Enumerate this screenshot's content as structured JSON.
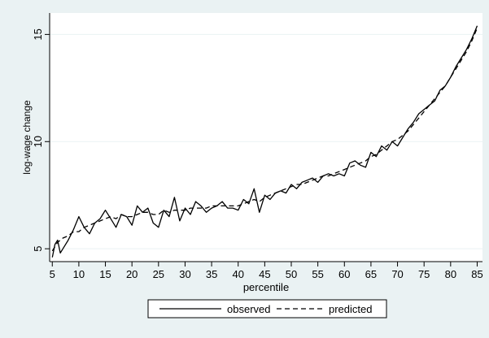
{
  "chart_data": {
    "type": "line",
    "title": "",
    "xlabel": "percentile",
    "ylabel": "log-wage change",
    "xlim": [
      4.5,
      86
    ],
    "ylim": [
      4.4,
      16
    ],
    "x_ticks": [
      5,
      10,
      15,
      20,
      25,
      30,
      35,
      40,
      45,
      50,
      55,
      60,
      65,
      70,
      75,
      80,
      85
    ],
    "y_ticks": [
      5,
      10,
      15
    ],
    "grid": "horizontal",
    "legend": "bottom, boxed",
    "series": [
      {
        "name": "observed",
        "style": "solid",
        "color": "#000000",
        "x": [
          5,
          5.5,
          6,
          6.5,
          7,
          8,
          9,
          10,
          11,
          12,
          13,
          14,
          15,
          16,
          17,
          18,
          19,
          20,
          21,
          22,
          23,
          24,
          25,
          26,
          27,
          28,
          29,
          30,
          31,
          32,
          33,
          34,
          35,
          36,
          37,
          38,
          39,
          40,
          41,
          42,
          43,
          44,
          45,
          46,
          47,
          48,
          49,
          50,
          51,
          52,
          53,
          54,
          55,
          56,
          57,
          58,
          59,
          60,
          61,
          62,
          63,
          64,
          65,
          66,
          67,
          68,
          69,
          70,
          71,
          72,
          73,
          74,
          75,
          76,
          77,
          78,
          79,
          80,
          81,
          82,
          83,
          84,
          85
        ],
        "y": [
          4.6,
          5.2,
          5.4,
          4.8,
          5.0,
          5.4,
          5.9,
          6.5,
          6.0,
          5.7,
          6.2,
          6.4,
          6.8,
          6.4,
          6.0,
          6.6,
          6.5,
          6.1,
          7.0,
          6.7,
          6.9,
          6.2,
          6.0,
          6.8,
          6.5,
          7.4,
          6.3,
          6.9,
          6.6,
          7.2,
          7.0,
          6.7,
          6.9,
          7.0,
          7.2,
          6.9,
          6.9,
          6.8,
          7.3,
          7.1,
          7.8,
          6.7,
          7.5,
          7.3,
          7.6,
          7.7,
          7.6,
          8.0,
          7.8,
          8.1,
          8.2,
          8.3,
          8.1,
          8.4,
          8.5,
          8.4,
          8.5,
          8.4,
          9.0,
          9.1,
          8.9,
          8.8,
          9.5,
          9.3,
          9.8,
          9.6,
          10.0,
          9.8,
          10.2,
          10.6,
          10.9,
          11.3,
          11.5,
          11.7,
          11.9,
          12.4,
          12.6,
          13.0,
          13.5,
          13.9,
          14.3,
          14.8,
          15.4
        ]
      },
      {
        "name": "predicted",
        "style": "dashed",
        "color": "#000000",
        "x": [
          5,
          6,
          7,
          8,
          9,
          10,
          11,
          12,
          13,
          14,
          15,
          16,
          17,
          18,
          19,
          20,
          21,
          22,
          23,
          24,
          25,
          26,
          27,
          28,
          29,
          30,
          31,
          32,
          33,
          34,
          35,
          36,
          37,
          38,
          39,
          40,
          41,
          42,
          43,
          44,
          45,
          46,
          47,
          48,
          49,
          50,
          51,
          52,
          53,
          54,
          55,
          56,
          57,
          58,
          59,
          60,
          61,
          62,
          63,
          64,
          65,
          66,
          67,
          68,
          69,
          70,
          71,
          72,
          73,
          74,
          75,
          76,
          77,
          78,
          79,
          80,
          81,
          82,
          83,
          84,
          85
        ],
        "y": [
          4.9,
          5.3,
          5.5,
          5.6,
          5.8,
          5.8,
          6.0,
          6.1,
          6.2,
          6.3,
          6.4,
          6.5,
          6.4,
          6.6,
          6.5,
          6.5,
          6.6,
          6.7,
          6.7,
          6.6,
          6.6,
          6.8,
          6.7,
          6.8,
          6.8,
          6.8,
          6.9,
          6.9,
          6.9,
          6.9,
          7.0,
          7.0,
          7.0,
          7.0,
          7.0,
          7.0,
          7.1,
          7.2,
          7.3,
          7.2,
          7.4,
          7.5,
          7.6,
          7.7,
          7.8,
          7.9,
          8.0,
          8.0,
          8.1,
          8.2,
          8.3,
          8.4,
          8.4,
          8.5,
          8.6,
          8.7,
          8.8,
          8.9,
          9.0,
          9.1,
          9.3,
          9.4,
          9.6,
          9.8,
          10.0,
          10.1,
          10.3,
          10.5,
          10.8,
          11.1,
          11.4,
          11.7,
          12.0,
          12.3,
          12.6,
          13.0,
          13.4,
          13.8,
          14.2,
          14.7,
          15.3
        ]
      }
    ]
  }
}
